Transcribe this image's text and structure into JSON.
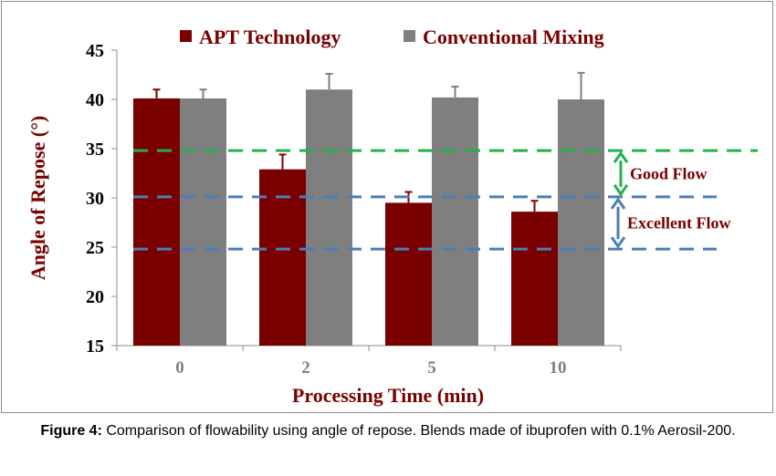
{
  "chart_data": {
    "type": "bar",
    "categories": [
      "0",
      "2",
      "5",
      "10"
    ],
    "series": [
      {
        "name": "APT Technology",
        "color": "#7a0000",
        "values": [
          40.1,
          32.9,
          29.5,
          28.6
        ],
        "errors": [
          0.9,
          1.5,
          1.1,
          1.1
        ]
      },
      {
        "name": "Conventional Mixing",
        "color": "#7f7f7f",
        "values": [
          40.1,
          41.0,
          40.2,
          40.0
        ],
        "errors": [
          0.9,
          1.6,
          1.1,
          2.7
        ]
      }
    ],
    "xlabel": "Processing Time (min)",
    "ylabel": "Angle of Repose (°)",
    "ylim": [
      15,
      45
    ],
    "yticks": [
      "15",
      "20",
      "25",
      "30",
      "35",
      "40",
      "45"
    ],
    "legend_position": "top",
    "reference_lines": [
      {
        "value": 34.8,
        "color": "#22b14c",
        "style": "dashed"
      },
      {
        "value": 30.1,
        "color": "#4a7ebb",
        "style": "dashed"
      },
      {
        "value": 24.8,
        "color": "#4a7ebb",
        "style": "dashed"
      }
    ],
    "annotations": [
      {
        "text": "Good Flow",
        "from": 34.8,
        "to": 30.1,
        "color": "#22b14c"
      },
      {
        "text": "Excellent Flow",
        "from": 30.1,
        "to": 24.8,
        "color": "#4a7ebb"
      }
    ],
    "label_color": "#7a0000",
    "tick_label_color_x": "#7f7f7f"
  },
  "caption": {
    "label": "Figure 4:",
    "text": " Comparison of flowability using  angle of repose. Blends made of ibuprofen  with  0.1% Aerosil-200."
  }
}
